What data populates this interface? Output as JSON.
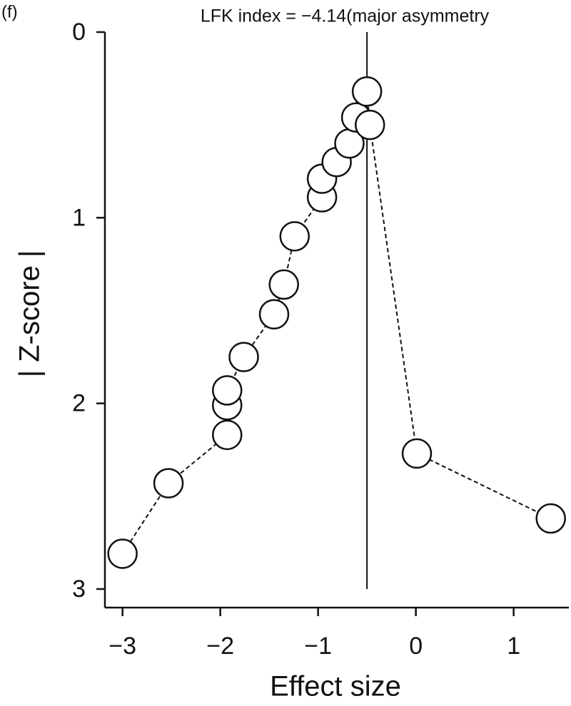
{
  "panel_label": "(f)",
  "chart_data": {
    "type": "scatter",
    "title": "LFK index = −4.14(major asymmetry",
    "x_label": "Effect size",
    "y_label": "| Z-score |",
    "xlim": [
      -3.18,
      1.55
    ],
    "ylim": [
      0,
      3.1
    ],
    "y_inverted": true,
    "xticks": [
      {
        "value": -3,
        "label": "−3"
      },
      {
        "value": -2,
        "label": "−2"
      },
      {
        "value": -1,
        "label": "−1"
      },
      0,
      1
    ],
    "yticks": [
      0,
      1,
      2,
      3
    ],
    "reference_x": -0.5,
    "connect": "dashed",
    "marker_fill": "#ffffff",
    "color": "#111111",
    "series": [
      {
        "x": [
          -3.0,
          -2.53,
          -1.93,
          -1.93,
          -1.93,
          -1.76,
          -1.45,
          -1.35,
          -1.24,
          -0.96,
          -0.96,
          -0.81,
          -0.68,
          -0.61,
          -0.5,
          -0.47,
          0.01,
          1.38
        ],
        "values": [
          2.81,
          2.43,
          2.17,
          2.01,
          1.93,
          1.75,
          1.52,
          1.36,
          1.1,
          0.89,
          0.79,
          0.7,
          0.6,
          0.46,
          0.32,
          0.5,
          2.27,
          2.62
        ]
      }
    ]
  }
}
